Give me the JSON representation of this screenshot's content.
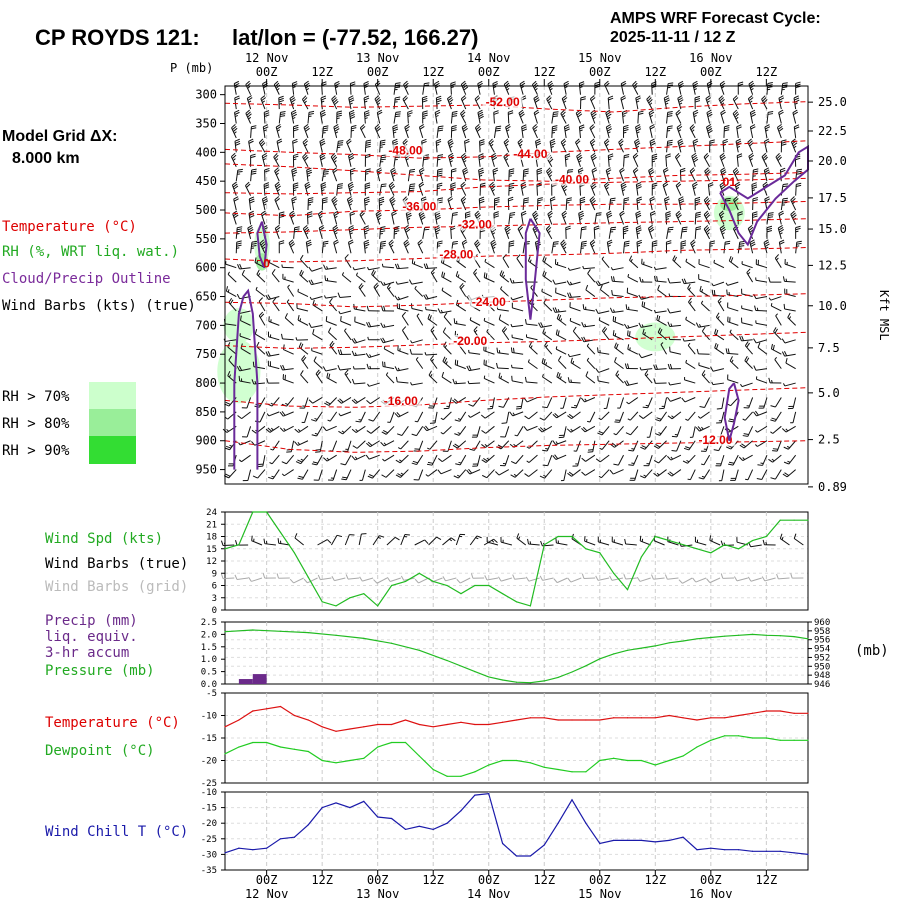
{
  "header": {
    "station": "CP ROYDS 121:",
    "latlon": "lat/lon = (-77.52, 166.27)",
    "cycle_line1": "AMPS WRF Forecast Cycle:",
    "cycle_line2": "2025-11-11 / 12  Z"
  },
  "sidebar": {
    "grid_label": "Model Grid ΔX:",
    "grid_value": "8.000 km",
    "legend_temperature": "Temperature (°C)",
    "legend_rh": "RH (%, WRT liq. wat.)",
    "legend_cloud": "Cloud/Precip Outline",
    "legend_wind": "Wind Barbs (kts) (true)",
    "rh70": "RH > 70%",
    "rh80": "RH > 80%",
    "rh90": "RH > 90%",
    "colors": {
      "rh70": "#ccffcc",
      "rh80": "#99ee99",
      "rh90": "#33dd33"
    }
  },
  "panel_labels": {
    "wind_spd": "Wind Spd (kts)",
    "wind_true": "Wind Barbs (true)",
    "wind_grid": "Wind Barbs (grid)",
    "precip1": "Precip (mm)",
    "precip2": "liq. equiv.",
    "precip3": "3-hr accum",
    "pressure": "Pressure (mb)",
    "pressure_unit": "(mb)",
    "temperature": "Temperature (°C)",
    "dewpoint": "Dewpoint (°C)",
    "windchill": "Wind Chill T (°C)",
    "p_axis": "P (mb)",
    "kft_axis": "Kft MSL"
  },
  "chart_data": {
    "type": "meteogram",
    "time_ticks": [
      "00Z",
      "12Z",
      "00Z",
      "12Z",
      "00Z",
      "12Z",
      "00Z",
      "12Z",
      "00Z",
      "12Z"
    ],
    "date_labels": [
      "12 Nov",
      "13 Nov",
      "14 Nov",
      "15 Nov",
      "16 Nov"
    ],
    "time_hours": [
      -9,
      117
    ],
    "cross_section": {
      "pressure_levels": [
        300,
        350,
        400,
        450,
        500,
        550,
        600,
        650,
        700,
        750,
        800,
        850,
        900,
        950
      ],
      "height_labels": [
        {
          "p": 313,
          "label": "25.0"
        },
        {
          "p": 363,
          "label": "22.5"
        },
        {
          "p": 415,
          "label": "20.0"
        },
        {
          "p": 479,
          "label": "17.5"
        },
        {
          "p": 533,
          "label": "15.0"
        },
        {
          "p": 596,
          "label": "12.5"
        },
        {
          "p": 666,
          "label": "10.0"
        },
        {
          "p": 739,
          "label": "7.5"
        },
        {
          "p": 817,
          "label": "5.0"
        },
        {
          "p": 898,
          "label": "2.5"
        },
        {
          "p": 980,
          "label": "0.89"
        }
      ],
      "temperature_contours": [
        {
          "label": "-52.00",
          "t": 51,
          "p": 320
        },
        {
          "label": "-48.00",
          "t": 30,
          "p": 404
        },
        {
          "label": "-44.00",
          "t": 57,
          "p": 410
        },
        {
          "label": "-40.00",
          "t": 66,
          "p": 454
        },
        {
          "label": "-36.00",
          "t": 33,
          "p": 501
        },
        {
          "label": "-32.00",
          "t": 45,
          "p": 532
        },
        {
          "label": "-28.00",
          "t": 41,
          "p": 584
        },
        {
          "label": "-24.00",
          "t": 48,
          "p": 666
        },
        {
          "label": "-20.00",
          "t": 44,
          "p": 734
        },
        {
          "label": "-16.00",
          "t": 29,
          "p": 838
        },
        {
          "label": "-12.00",
          "t": 97,
          "p": 906
        }
      ],
      "cloud_labels": [
        {
          "label": "0",
          "t": 0,
          "p": 600
        },
        {
          "label": "01",
          "t": 100,
          "p": 458
        }
      ]
    },
    "wind_speed": {
      "ylim": [
        0,
        24
      ],
      "yticks": [
        0,
        3,
        6,
        9,
        12,
        15,
        18,
        21,
        24
      ],
      "x": [
        -9,
        -6,
        -3,
        0,
        3,
        6,
        9,
        12,
        15,
        18,
        21,
        24,
        27,
        30,
        33,
        36,
        39,
        42,
        45,
        48,
        51,
        54,
        57,
        60,
        63,
        66,
        69,
        72,
        75,
        78,
        81,
        84,
        87,
        90,
        93,
        96,
        99,
        102,
        105,
        108,
        111,
        114,
        117
      ],
      "values": [
        15,
        16,
        24,
        24,
        19,
        14,
        8,
        2,
        1,
        3,
        4,
        1,
        6,
        7,
        9,
        7,
        6,
        4,
        6,
        6,
        4,
        2,
        1,
        16,
        18,
        18,
        15,
        14,
        9,
        5,
        13,
        18,
        17,
        16,
        15,
        14,
        16,
        15,
        17,
        18,
        22,
        22,
        22
      ]
    },
    "pressure": {
      "ylim": [
        946,
        960
      ],
      "yticks": [
        946,
        948,
        950,
        952,
        954,
        956,
        958,
        960
      ],
      "x": [
        -9,
        -3,
        3,
        9,
        15,
        21,
        27,
        33,
        39,
        45,
        48,
        51,
        54,
        57,
        60,
        63,
        66,
        69,
        72,
        75,
        78,
        81,
        84,
        87,
        90,
        93,
        96,
        99,
        102,
        105,
        108,
        111,
        114,
        117
      ],
      "values": [
        957.8,
        958.2,
        957.9,
        957.6,
        957.0,
        956.3,
        955.2,
        953.6,
        951.3,
        948.8,
        947.6,
        946.9,
        946.4,
        946.3,
        946.7,
        947.5,
        948.7,
        950.1,
        951.7,
        952.8,
        953.6,
        954.1,
        954.6,
        955.3,
        955.7,
        956.2,
        956.5,
        956.8,
        957.0,
        957.2,
        957.0,
        956.9,
        956.7,
        956.2
      ]
    },
    "precip": {
      "ylim": [
        0,
        2.5
      ],
      "yticks": [
        "0.0",
        "0.5",
        "1.0",
        "1.5",
        "2.0",
        "2.5"
      ],
      "bars": [
        {
          "start": -6,
          "end": -3,
          "value": 0.2
        },
        {
          "start": -3,
          "end": 0,
          "value": 0.4
        }
      ]
    },
    "temperature_dewpoint": {
      "ylim": [
        -25,
        -5
      ],
      "yticks": [
        -25,
        -20,
        -15,
        -10,
        -5
      ],
      "x": [
        -9,
        -6,
        -3,
        0,
        3,
        6,
        9,
        12,
        15,
        18,
        21,
        24,
        27,
        30,
        33,
        36,
        39,
        42,
        45,
        48,
        51,
        54,
        57,
        60,
        63,
        66,
        69,
        72,
        75,
        78,
        81,
        84,
        87,
        90,
        93,
        96,
        99,
        102,
        105,
        108,
        111,
        114,
        117
      ],
      "temperature": [
        -12.5,
        -11,
        -9,
        -8.5,
        -8,
        -10,
        -11,
        -12.5,
        -13.5,
        -13,
        -12.5,
        -12,
        -12,
        -11,
        -12,
        -12.5,
        -12,
        -11.5,
        -12,
        -12,
        -11.5,
        -11,
        -10.5,
        -10.5,
        -11,
        -11,
        -11,
        -11,
        -10.5,
        -10.5,
        -10.5,
        -10.5,
        -10,
        -10.5,
        -11,
        -10.5,
        -10.5,
        -10,
        -9.5,
        -9,
        -9,
        -9.5,
        -9.5
      ],
      "dewpoint": [
        -18.5,
        -17,
        -16,
        -16,
        -17,
        -17.5,
        -18,
        -20,
        -20.5,
        -20,
        -19.5,
        -17,
        -16,
        -16,
        -19,
        -22,
        -23.5,
        -23.5,
        -22.5,
        -21,
        -20,
        -20,
        -20.5,
        -21.5,
        -22,
        -22.5,
        -22.5,
        -20,
        -19.5,
        -20,
        -20,
        -21,
        -20,
        -19,
        -17,
        -15.5,
        -14.5,
        -14.5,
        -15,
        -15,
        -15.5,
        -15.5,
        -15.5
      ]
    },
    "wind_chill": {
      "ylim": [
        -35,
        -10
      ],
      "yticks": [
        -35,
        -30,
        -25,
        -20,
        -15,
        -10
      ],
      "x": [
        -9,
        -6,
        -3,
        0,
        3,
        6,
        9,
        12,
        15,
        18,
        21,
        24,
        27,
        30,
        33,
        36,
        39,
        42,
        45,
        48,
        51,
        54,
        57,
        60,
        63,
        66,
        69,
        72,
        75,
        78,
        81,
        84,
        87,
        90,
        93,
        96,
        99,
        102,
        105,
        108,
        111,
        114,
        117
      ],
      "values": [
        -29.5,
        -28,
        -28.5,
        -28,
        -25,
        -24.5,
        -20.5,
        -15,
        -13.5,
        -15,
        -13,
        -18,
        -18.5,
        -22,
        -21,
        -22,
        -20,
        -16,
        -11,
        -10.5,
        -26.5,
        -30.5,
        -30.5,
        -27,
        -20,
        -12.5,
        -20,
        -26.5,
        -25.5,
        -25.5,
        -25.5,
        -26,
        -25.5,
        -24.5,
        -28.5,
        -28,
        -28.5,
        -28.5,
        -29,
        -29,
        -29,
        -29.5,
        -30
      ]
    }
  }
}
